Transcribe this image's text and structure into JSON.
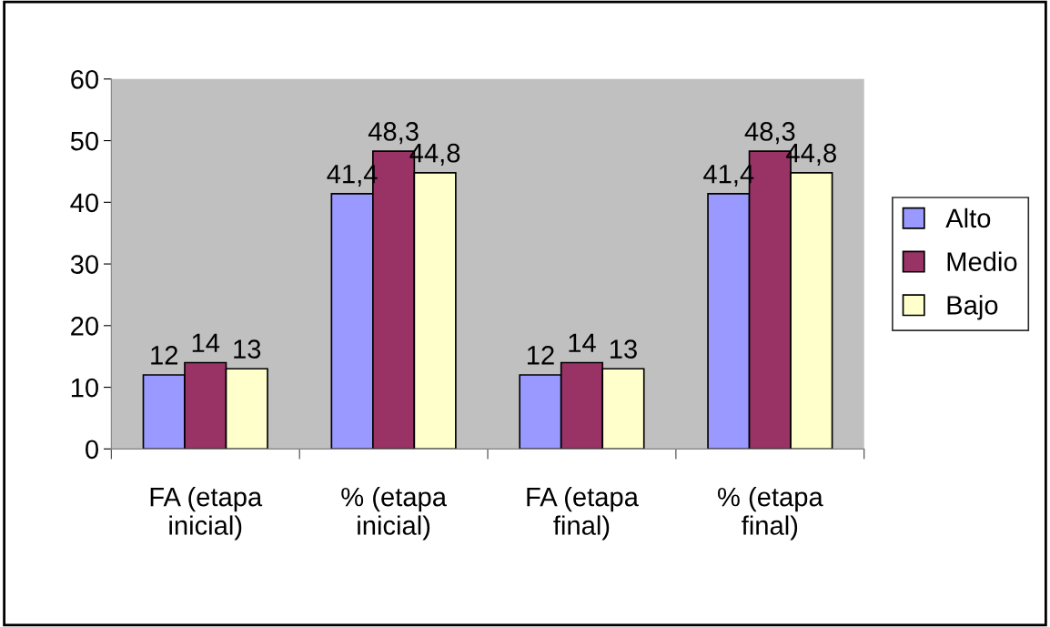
{
  "chart_data": {
    "type": "bar",
    "categories": [
      "FA (etapa\ninicial)",
      "% (etapa\ninicial)",
      "FA (etapa\nfinal)",
      "% (etapa\nfinal)"
    ],
    "series": [
      {
        "name": "Alto",
        "color": "#9999ff",
        "values": [
          12,
          41.4,
          12,
          41.4
        ],
        "value_labels": [
          "12",
          "41,4",
          "12",
          "41,4"
        ]
      },
      {
        "name": "Medio",
        "color": "#993366",
        "values": [
          14,
          48.3,
          14,
          48.3
        ],
        "value_labels": [
          "14",
          "48,3",
          "14",
          "48,3"
        ]
      },
      {
        "name": "Bajo",
        "color": "#ffffcc",
        "values": [
          13,
          44.8,
          13,
          44.8
        ],
        "value_labels": [
          "13",
          "44,8",
          "13",
          "44,8"
        ]
      }
    ],
    "ylim": [
      0,
      60
    ],
    "yticks": [
      0,
      10,
      20,
      30,
      40,
      50,
      60
    ],
    "grid": false,
    "legend": "right"
  }
}
